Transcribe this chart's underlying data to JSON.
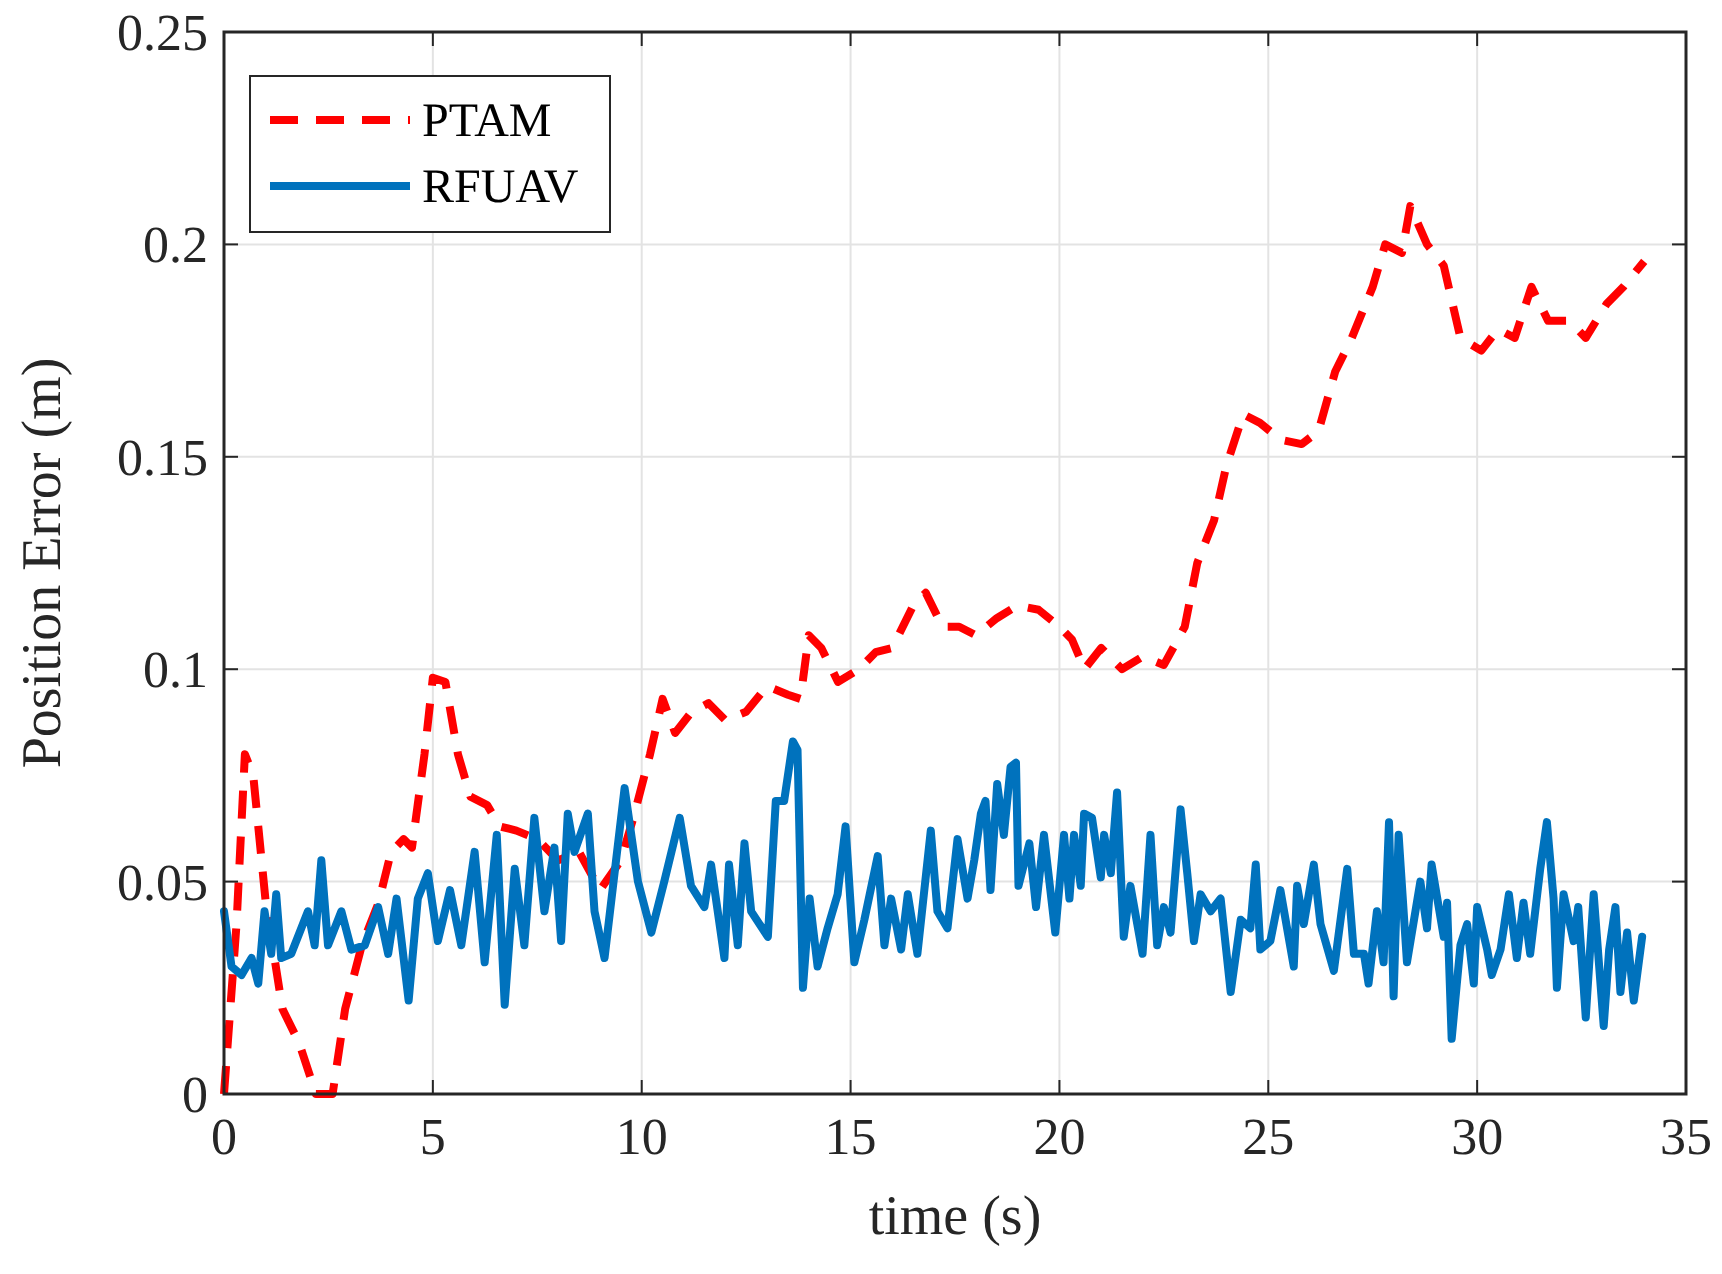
{
  "chart_data": {
    "type": "line",
    "xlabel": "time (s)",
    "ylabel": "Position Error (m)",
    "xlim": [
      0,
      35
    ],
    "ylim": [
      0,
      0.25
    ],
    "xticks": [
      0,
      5,
      10,
      15,
      20,
      25,
      30,
      35
    ],
    "yticks": [
      0,
      0.05,
      0.1,
      0.15,
      0.2,
      0.25
    ],
    "grid": true,
    "legend": "top left",
    "series": [
      {
        "name": "PTAM",
        "color": "#ff0000",
        "line_style": "dashed",
        "x": [
          0,
          0.3,
          0.5,
          0.7,
          1,
          1.4,
          1.8,
          2.2,
          2.6,
          2.9,
          3.3,
          3.7,
          4.0,
          4.3,
          4.5,
          4.8,
          5.0,
          5.3,
          5.6,
          5.9,
          6.3,
          6.6,
          7,
          7.5,
          8,
          8.5,
          9,
          9.5,
          9.8,
          10.2,
          10.5,
          10.8,
          11.2,
          11.6,
          12,
          12.5,
          13,
          13.5,
          13.8,
          14,
          14.3,
          14.7,
          15.2,
          15.6,
          16,
          16.5,
          16.8,
          17.2,
          17.6,
          18,
          18.5,
          19,
          19.5,
          20,
          20.3,
          20.6,
          21,
          21.5,
          22,
          22.5,
          23,
          23.3,
          23.7,
          24,
          24.4,
          24.8,
          25.3,
          25.8,
          26.2,
          26.6,
          27,
          27.5,
          27.8,
          28.2,
          28.4,
          28.8,
          29.2,
          29.6,
          30.1,
          30.5,
          30.9,
          31.3,
          31.7,
          32.2,
          32.6,
          33.1,
          33.5,
          34
        ],
        "values": [
          0,
          0.04,
          0.08,
          0.075,
          0.045,
          0.02,
          0.012,
          0,
          0,
          0.02,
          0.035,
          0.045,
          0.057,
          0.06,
          0.058,
          0.08,
          0.098,
          0.097,
          0.08,
          0.07,
          0.068,
          0.063,
          0.062,
          0.06,
          0.055,
          0.057,
          0.048,
          0.055,
          0.065,
          0.08,
          0.093,
          0.085,
          0.09,
          0.092,
          0.088,
          0.09,
          0.096,
          0.094,
          0.093,
          0.108,
          0.105,
          0.097,
          0.1,
          0.104,
          0.105,
          0.115,
          0.118,
          0.11,
          0.11,
          0.108,
          0.112,
          0.115,
          0.114,
          0.11,
          0.107,
          0.1,
          0.105,
          0.1,
          0.103,
          0.101,
          0.11,
          0.125,
          0.135,
          0.148,
          0.16,
          0.158,
          0.154,
          0.153,
          0.156,
          0.17,
          0.178,
          0.19,
          0.2,
          0.198,
          0.209,
          0.2,
          0.195,
          0.178,
          0.175,
          0.18,
          0.178,
          0.19,
          0.182,
          0.182,
          0.178,
          0.186,
          0.19,
          0.196
        ]
      },
      {
        "name": "RFUAV",
        "color": "#0072bd",
        "line_style": "solid",
        "x": [
          0,
          0.18,
          0.42,
          0.66,
          0.82,
          0.97,
          1.13,
          1.25,
          1.37,
          1.61,
          2.01,
          2.17,
          2.33,
          2.49,
          2.81,
          3.05,
          3.37,
          3.69,
          3.93,
          4.13,
          4.42,
          4.64,
          4.88,
          5.12,
          5.41,
          5.68,
          6.0,
          6.24,
          6.53,
          6.72,
          6.96,
          7.19,
          7.43,
          7.67,
          7.91,
          8.07,
          8.23,
          8.39,
          8.71,
          8.87,
          9.11,
          9.59,
          9.91,
          10.23,
          10.54,
          10.91,
          11.18,
          11.5,
          11.66,
          11.98,
          12.09,
          12.3,
          12.46,
          12.62,
          13.02,
          13.21,
          13.41,
          13.62,
          13.73,
          13.86,
          14.02,
          14.21,
          14.45,
          14.69,
          14.88,
          15.09,
          15.33,
          15.65,
          15.81,
          15.97,
          16.21,
          16.37,
          16.6,
          16.92,
          17.08,
          17.32,
          17.56,
          17.8,
          17.96,
          18.12,
          18.23,
          18.35,
          18.51,
          18.67,
          18.83,
          18.96,
          19.02,
          19.28,
          19.44,
          19.63,
          19.9,
          20.11,
          20.24,
          20.35,
          20.51,
          20.59,
          20.78,
          20.99,
          21.07,
          21.23,
          21.38,
          21.54,
          21.7,
          21.99,
          22.18,
          22.34,
          22.5,
          22.66,
          22.9,
          23.06,
          23.22,
          23.38,
          23.62,
          23.86,
          24.1,
          24.34,
          24.57,
          24.7,
          24.81,
          25.05,
          25.29,
          25.61,
          25.69,
          25.85,
          26.09,
          26.25,
          26.57,
          26.89,
          27.05,
          27.29,
          27.4,
          27.6,
          27.76,
          27.89,
          28.0,
          28.12,
          28.32,
          28.64,
          28.8,
          28.91,
          29.2,
          29.28,
          29.39,
          29.6,
          29.76,
          29.92,
          30.0,
          30.24,
          30.35,
          30.56,
          30.76,
          30.95,
          31.11,
          31.27,
          31.51,
          31.67,
          31.83,
          31.91,
          32.07,
          32.31,
          32.42,
          32.6,
          32.79,
          33.03,
          33.16,
          33.31,
          33.43,
          33.59,
          33.75,
          33.95
        ],
        "values": [
          0.043,
          0.03,
          0.028,
          0.032,
          0.026,
          0.043,
          0.033,
          0.047,
          0.032,
          0.033,
          0.043,
          0.035,
          0.055,
          0.035,
          0.043,
          0.034,
          0.035,
          0.044,
          0.033,
          0.046,
          0.022,
          0.046,
          0.052,
          0.036,
          0.048,
          0.035,
          0.057,
          0.031,
          0.061,
          0.021,
          0.053,
          0.035,
          0.065,
          0.043,
          0.058,
          0.036,
          0.066,
          0.057,
          0.066,
          0.043,
          0.032,
          0.072,
          0.05,
          0.038,
          0.05,
          0.065,
          0.049,
          0.044,
          0.054,
          0.032,
          0.054,
          0.035,
          0.059,
          0.043,
          0.037,
          0.069,
          0.069,
          0.083,
          0.081,
          0.025,
          0.046,
          0.03,
          0.039,
          0.047,
          0.063,
          0.031,
          0.041,
          0.056,
          0.035,
          0.046,
          0.034,
          0.047,
          0.033,
          0.062,
          0.043,
          0.039,
          0.06,
          0.046,
          0.055,
          0.066,
          0.069,
          0.048,
          0.073,
          0.061,
          0.077,
          0.078,
          0.049,
          0.059,
          0.044,
          0.061,
          0.038,
          0.061,
          0.046,
          0.061,
          0.049,
          0.066,
          0.065,
          0.051,
          0.061,
          0.052,
          0.071,
          0.037,
          0.049,
          0.033,
          0.061,
          0.035,
          0.044,
          0.038,
          0.067,
          0.052,
          0.036,
          0.047,
          0.043,
          0.046,
          0.024,
          0.041,
          0.039,
          0.054,
          0.034,
          0.036,
          0.048,
          0.03,
          0.049,
          0.04,
          0.054,
          0.04,
          0.029,
          0.053,
          0.033,
          0.033,
          0.026,
          0.043,
          0.031,
          0.064,
          0.023,
          0.061,
          0.031,
          0.05,
          0.039,
          0.054,
          0.037,
          0.045,
          0.013,
          0.035,
          0.04,
          0.026,
          0.044,
          0.034,
          0.028,
          0.034,
          0.047,
          0.032,
          0.045,
          0.033,
          0.053,
          0.064,
          0.046,
          0.025,
          0.047,
          0.036,
          0.044,
          0.018,
          0.047,
          0.016,
          0.034,
          0.044,
          0.024,
          0.038,
          0.022,
          0.037
        ]
      }
    ]
  }
}
